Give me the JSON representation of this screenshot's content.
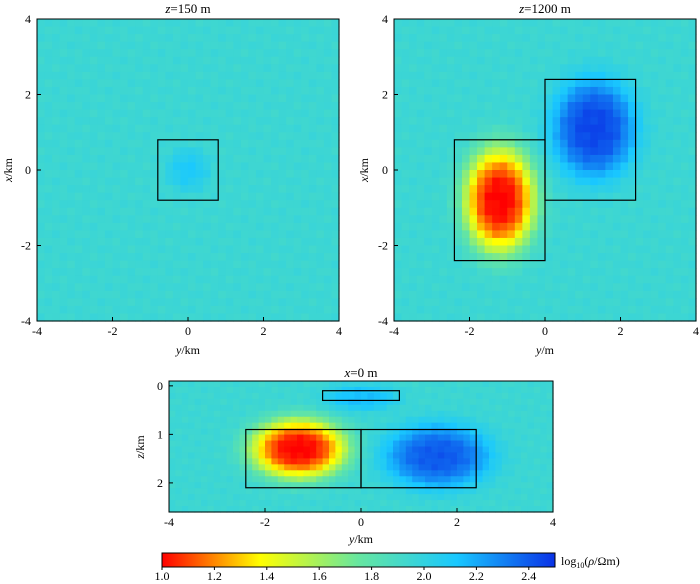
{
  "colors": {
    "background": "#ffffff",
    "frame": "#000000",
    "colormap": [
      "#ff0000",
      "#ffff00",
      "#66e6a0",
      "#19c8ff",
      "#0a32e6"
    ]
  },
  "colorbar": {
    "label": "log10(ρ/Ωm)",
    "label_base": "log",
    "label_sub": "10",
    "label_rest": "(",
    "label_rho": "ρ",
    "label_tail": "/Ωm)",
    "range": [
      1.0,
      2.5
    ],
    "ticks": [
      "1.0",
      "1.2",
      "1.4",
      "1.6",
      "1.8",
      "2.0",
      "2.2",
      "2.4"
    ]
  },
  "chart_data": [
    {
      "type": "heatmap",
      "title": "z=150 m",
      "title_var": "z",
      "title_rest": "=150 m",
      "xlabel": "y/km",
      "xlabel_var": "y",
      "xlabel_unit": "/km",
      "ylabel": "x/km",
      "ylabel_var": "x",
      "ylabel_unit": "/km",
      "xlim": [
        -4,
        4
      ],
      "ylim": [
        -4,
        4
      ],
      "xticks": [
        "-4",
        "-2",
        "0",
        "2",
        "4"
      ],
      "yticks": [
        "-4",
        "-2",
        "0",
        "2",
        "4"
      ],
      "background_value": 1.95,
      "anomalies": [
        {
          "y": 0.0,
          "x": 0.0,
          "sy": 0.5,
          "sx": 0.5,
          "value": 2.1
        }
      ],
      "boxes": [
        {
          "y0": -0.8,
          "y1": 0.8,
          "x0": -0.8,
          "x1": 0.8
        }
      ]
    },
    {
      "type": "heatmap",
      "title": "z=1200 m",
      "title_var": "z",
      "title_rest": "=1200 m",
      "xlabel": "y/m",
      "xlabel_var": "y",
      "xlabel_unit": "/m",
      "ylabel": "x/km",
      "ylabel_var": "x",
      "ylabel_unit": "/km",
      "xlim": [
        -4,
        4
      ],
      "ylim": [
        -4,
        4
      ],
      "xticks": [
        "-4",
        "-2",
        "0",
        "2",
        "4"
      ],
      "yticks": [
        "-4",
        "-2",
        "0",
        "2",
        "4"
      ],
      "background_value": 1.95,
      "anomalies": [
        {
          "y": -1.2,
          "x": -0.8,
          "sy": 0.85,
          "sx": 1.25,
          "value": 1.0
        },
        {
          "y": 1.3,
          "x": 1.1,
          "sy": 1.0,
          "sx": 1.2,
          "value": 2.45
        }
      ],
      "boxes": [
        {
          "y0": -2.4,
          "y1": 0.0,
          "x0": -2.4,
          "x1": 0.8
        },
        {
          "y0": 0.0,
          "y1": 2.4,
          "x0": -0.8,
          "x1": 2.4
        }
      ]
    },
    {
      "type": "heatmap",
      "title": "x=0 m",
      "title_var": "x",
      "title_rest": "=0 m",
      "xlabel": "y/km",
      "xlabel_var": "y",
      "xlabel_unit": "/km",
      "ylabel": "z/km",
      "ylabel_var": "z",
      "ylabel_unit": "/km",
      "xlim": [
        -4,
        4
      ],
      "ylim": [
        2.6,
        -0.1
      ],
      "xticks": [
        "-4",
        "-2",
        "0",
        "2",
        "4"
      ],
      "yticks": [
        "0",
        "1",
        "2"
      ],
      "background_value": 1.95,
      "anomalies": [
        {
          "y": 0.0,
          "x": 0.25,
          "sy": 0.7,
          "sx": 0.25,
          "value": 2.15
        },
        {
          "y": -1.3,
          "x": 1.3,
          "sy": 0.9,
          "sx": 0.55,
          "value": 1.0
        },
        {
          "y": 1.6,
          "x": 1.45,
          "sy": 1.0,
          "sx": 0.6,
          "value": 2.4
        }
      ],
      "boxes": [
        {
          "y0": -0.8,
          "y1": 0.8,
          "x0": 0.1,
          "x1": 0.3
        },
        {
          "y0": -2.4,
          "y1": 0.0,
          "x0": 0.9,
          "x1": 2.1
        },
        {
          "y0": 0.0,
          "y1": 2.4,
          "x0": 0.9,
          "x1": 2.1
        }
      ]
    }
  ]
}
